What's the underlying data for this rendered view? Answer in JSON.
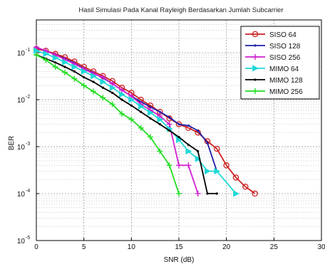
{
  "chart_data": {
    "type": "line",
    "title": "Hasil Simulasi Pada Kanal Rayleigh Berdasarkan Jumlah Subcarrier",
    "xlabel": "SNR (dB)",
    "ylabel": "BER",
    "xlim": [
      0,
      30
    ],
    "ylim": [
      1e-05,
      0.5
    ],
    "yscale": "log",
    "grid": true,
    "legend_position": "top-right",
    "x_ticks": [
      0,
      5,
      10,
      15,
      20,
      25,
      30
    ],
    "x_tick_labels": [
      "0",
      "5",
      "10",
      "15",
      "20",
      "25",
      "30"
    ],
    "y_ticks": [
      1e-05,
      0.0001,
      0.001,
      0.01,
      0.1
    ],
    "y_tick_labels": [
      {
        "base": "10",
        "exp": "-5"
      },
      {
        "base": "10",
        "exp": "-4"
      },
      {
        "base": "10",
        "exp": "-3"
      },
      {
        "base": "10",
        "exp": "-2"
      },
      {
        "base": "10",
        "exp": "-1"
      }
    ],
    "series": [
      {
        "name": "SISO 64",
        "color": "#cc2222",
        "marker": "circle",
        "x": [
          0,
          1,
          2,
          3,
          4,
          5,
          6,
          7,
          8,
          9,
          10,
          11,
          12,
          13,
          14,
          15,
          16,
          17,
          18,
          19,
          20,
          21,
          22,
          23
        ],
        "y": [
          0.12,
          0.11,
          0.095,
          0.08,
          0.065,
          0.05,
          0.04,
          0.032,
          0.025,
          0.018,
          0.014,
          0.01,
          0.0075,
          0.0055,
          0.004,
          0.003,
          0.0025,
          0.002,
          0.0013,
          0.0009,
          0.0004,
          0.00022,
          0.00014,
          0.0001
        ]
      },
      {
        "name": "SISO 128",
        "color": "#1f1fa8",
        "marker": "point",
        "x": [
          0,
          1,
          2,
          3,
          4,
          5,
          6,
          7,
          8,
          9,
          10,
          11,
          12,
          13,
          14,
          15,
          16,
          17,
          18,
          19
        ],
        "y": [
          0.13,
          0.11,
          0.09,
          0.075,
          0.06,
          0.046,
          0.037,
          0.029,
          0.022,
          0.016,
          0.012,
          0.009,
          0.007,
          0.0055,
          0.0042,
          0.003,
          0.0028,
          0.0022,
          0.0012,
          0.0003
        ]
      },
      {
        "name": "SISO 256",
        "color": "#d020d0",
        "marker": "plus",
        "x": [
          0,
          1,
          2,
          3,
          4,
          5,
          6,
          7,
          8,
          9,
          10,
          11,
          12,
          13,
          14,
          15,
          16,
          17
        ],
        "y": [
          0.13,
          0.11,
          0.09,
          0.072,
          0.058,
          0.045,
          0.036,
          0.03,
          0.022,
          0.016,
          0.012,
          0.008,
          0.006,
          0.0045,
          0.003,
          0.0004,
          0.0004,
          0.0001
        ]
      },
      {
        "name": "MIMO 64",
        "color": "#1fd8d8",
        "marker": "triangle-right",
        "x": [
          0,
          1,
          2,
          3,
          4,
          5,
          6,
          7,
          8,
          9,
          10,
          11,
          12,
          13,
          14,
          15,
          16,
          17,
          18,
          19,
          21
        ],
        "y": [
          0.11,
          0.095,
          0.078,
          0.063,
          0.05,
          0.04,
          0.032,
          0.024,
          0.018,
          0.013,
          0.01,
          0.0072,
          0.0053,
          0.0038,
          0.0024,
          0.0014,
          0.0008,
          0.00055,
          0.0003,
          0.0003,
          0.0001
        ]
      },
      {
        "name": "MIMO 128",
        "color": "#000000",
        "marker": "point",
        "x": [
          0,
          1,
          2,
          3,
          4,
          5,
          6,
          7,
          8,
          9,
          10,
          11,
          12,
          13,
          14,
          15,
          16,
          17,
          18,
          19
        ],
        "y": [
          0.09,
          0.075,
          0.062,
          0.05,
          0.04,
          0.03,
          0.024,
          0.018,
          0.014,
          0.01,
          0.0075,
          0.0055,
          0.004,
          0.003,
          0.0022,
          0.0016,
          0.0011,
          0.0008,
          0.0001,
          0.0001
        ]
      },
      {
        "name": "MIMO 256",
        "color": "#22dd22",
        "marker": "plus",
        "x": [
          0,
          1,
          2,
          3,
          4,
          5,
          6,
          7,
          8,
          9,
          10,
          11,
          12,
          13,
          14,
          15
        ],
        "y": [
          0.09,
          0.07,
          0.05,
          0.038,
          0.028,
          0.02,
          0.015,
          0.011,
          0.008,
          0.005,
          0.0038,
          0.0025,
          0.0016,
          0.0008,
          0.0004,
          0.0001
        ]
      }
    ]
  }
}
